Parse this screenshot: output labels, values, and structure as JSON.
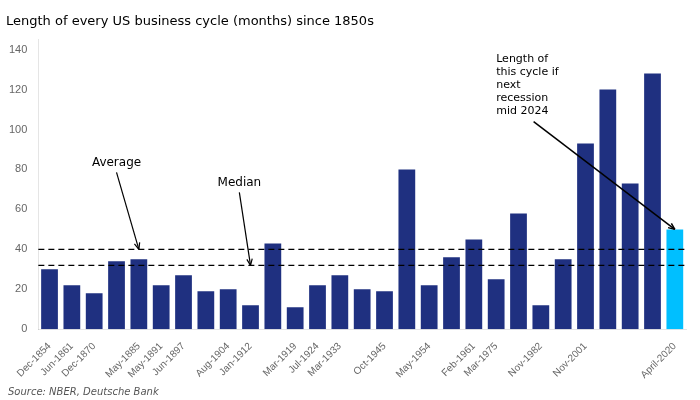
{
  "chart_data": {
    "type": "bar",
    "title": "Length of every US business cycle (months) since 1850s",
    "source": "Source: NBER, Deutsche Bank",
    "categories": [
      "Dec-1854",
      "Jun-1861",
      "Dec-1870",
      null,
      "May-1885",
      "May-1891",
      "Jun-1897",
      null,
      "Aug-1904",
      "Jan-1912",
      null,
      "Mar-1919",
      "Jul-1924",
      "Mar-1933",
      null,
      "Oct-1945",
      null,
      "May-1954",
      null,
      "Feb-1961",
      "Mar-1975",
      null,
      "Nov-1982",
      null,
      "Nov-2001",
      null,
      null,
      null,
      "April-2020"
    ],
    "values": [
      30,
      22,
      18,
      34,
      35,
      22,
      27,
      19,
      20,
      12,
      43,
      11,
      22,
      27,
      20,
      19,
      80,
      22,
      36,
      45,
      25,
      58,
      12,
      35,
      93,
      120,
      73,
      128,
      50
    ],
    "colors": [
      "#1f3080",
      "#1f3080",
      "#1f3080",
      "#1f3080",
      "#1f3080",
      "#1f3080",
      "#1f3080",
      "#1f3080",
      "#1f3080",
      "#1f3080",
      "#1f3080",
      "#1f3080",
      "#1f3080",
      "#1f3080",
      "#1f3080",
      "#1f3080",
      "#1f3080",
      "#1f3080",
      "#1f3080",
      "#1f3080",
      "#1f3080",
      "#1f3080",
      "#1f3080",
      "#1f3080",
      "#1f3080",
      "#1f3080",
      "#1f3080",
      "#1f3080",
      "#00bfff"
    ],
    "ylim": [
      0,
      145
    ],
    "yticks": [
      0,
      20,
      40,
      60,
      80,
      100,
      120,
      140
    ],
    "grid": false,
    "hlines": [
      {
        "value": 40,
        "label": "Average"
      },
      {
        "value": 32,
        "label": "Median"
      }
    ],
    "annotations": [
      {
        "text": "Length of\nthis cycle if\nnext\nrecession\nmid 2024",
        "x": "April-2020",
        "y": 50
      }
    ]
  }
}
